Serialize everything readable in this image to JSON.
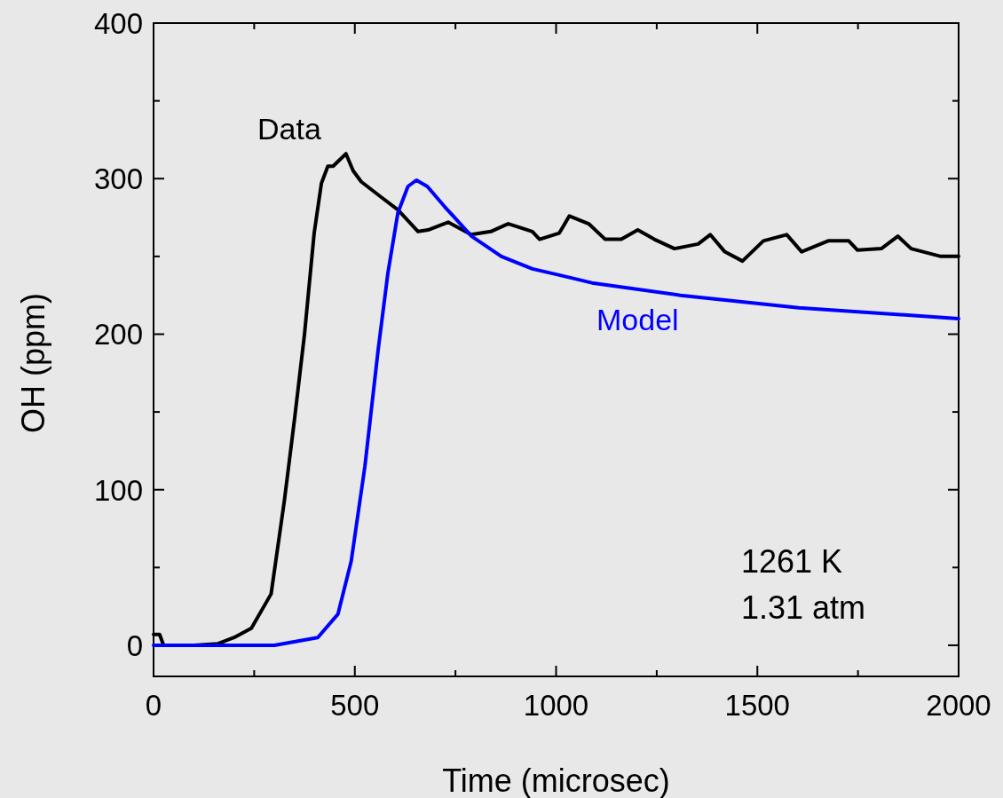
{
  "chart_data": {
    "type": "line",
    "xlabel": "Time (microsec)",
    "ylabel": "OH (ppm)",
    "xlim": [
      0,
      2000
    ],
    "ylim": [
      -20,
      400
    ],
    "xticks": [
      0,
      {
        "value": 250,
        "label": null
      },
      500,
      {
        "value": 750,
        "label": null
      },
      1000,
      {
        "value": 1250,
        "label": null
      },
      1500,
      {
        "value": 1750,
        "label": null
      },
      2000
    ],
    "yticks": [
      0,
      {
        "value": 50,
        "label": null
      },
      100,
      {
        "value": 150,
        "label": null
      },
      200,
      {
        "value": 250,
        "label": null
      },
      300,
      {
        "value": 350,
        "label": null
      },
      400
    ],
    "grid": false,
    "line_style": "solid",
    "marker": "none",
    "annotations": [
      "1261 K",
      "1.31 atm"
    ],
    "series": [
      {
        "name": "Data",
        "color": "#000000",
        "x": [
          0,
          15,
          25,
          100,
          160,
          200,
          243,
          292,
          325,
          351,
          375,
          399,
          417,
          433,
          446,
          478,
          496,
          516,
          566,
          607,
          657,
          682,
          732,
          789,
          838,
          881,
          941,
          959,
          1008,
          1033,
          1081,
          1122,
          1162,
          1203,
          1244,
          1294,
          1353,
          1383,
          1419,
          1463,
          1515,
          1573,
          1610,
          1676,
          1727,
          1749,
          1808,
          1849,
          1882,
          1956,
          2000
        ],
        "values": [
          7,
          7,
          0,
          0,
          1,
          5,
          11,
          33,
          93,
          147,
          200,
          265,
          297,
          308,
          308,
          316,
          305,
          298,
          288,
          280,
          266,
          267,
          272,
          264,
          266,
          271,
          266,
          261,
          265,
          276,
          271,
          261,
          261,
          267,
          261,
          255,
          258,
          264,
          253,
          247,
          260,
          264,
          253,
          260,
          260,
          254,
          255,
          263,
          255,
          250,
          250
        ]
      },
      {
        "name": "Model",
        "color": "#0000ff",
        "x": [
          0,
          300,
          408,
          458,
          491,
          525,
          558,
          582,
          607,
          632,
          653,
          680,
          723,
          790,
          864,
          941,
          1008,
          1089,
          1309,
          1603,
          2000
        ],
        "values": [
          0,
          0,
          5,
          20,
          54,
          115,
          190,
          239,
          278,
          295,
          299,
          295,
          282,
          263,
          250,
          242,
          238,
          233,
          225,
          217,
          210
        ]
      }
    ]
  }
}
